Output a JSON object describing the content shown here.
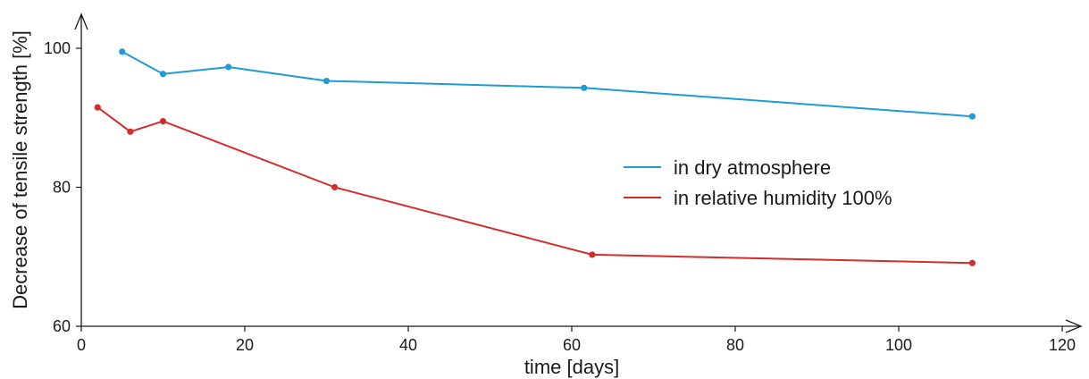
{
  "chart_data": {
    "type": "line",
    "title": "",
    "xlabel": "time [days]",
    "ylabel": "Decrease of tensile strength [%]",
    "xlim": [
      0,
      120
    ],
    "ylim": [
      60,
      100
    ],
    "xticks": [
      0,
      20,
      40,
      60,
      80,
      100,
      120
    ],
    "yticks": [
      60,
      80,
      100
    ],
    "grid": false,
    "legend_position": "right-center",
    "series": [
      {
        "name": "in dry atmosphere",
        "color": "#1e9bd7",
        "x": [
          5,
          10,
          18,
          30,
          61.5,
          109
        ],
        "y": [
          99.5,
          96.3,
          97.3,
          95.3,
          94.3,
          90.2
        ]
      },
      {
        "name": "in relative humidity 100%",
        "color": "#d52b2b",
        "x": [
          2,
          6,
          10,
          31,
          62.5,
          109
        ],
        "y": [
          91.5,
          88,
          89.5,
          80,
          70.3,
          69.1
        ]
      }
    ]
  }
}
